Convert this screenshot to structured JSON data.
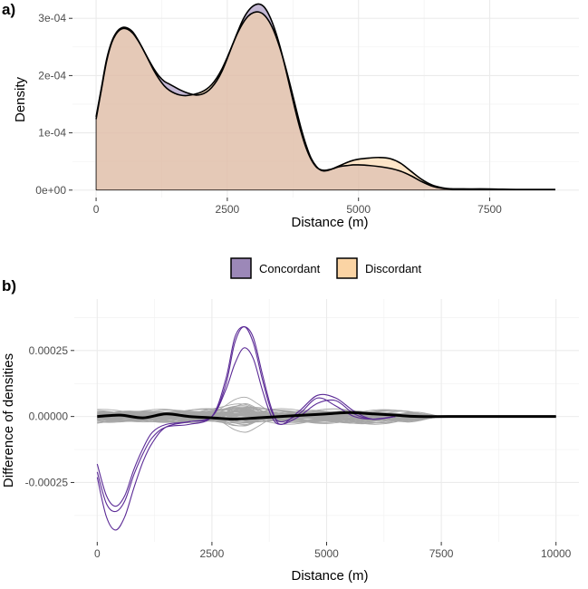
{
  "chart_data": [
    {
      "panel": "a)",
      "type": "area",
      "xlabel": "Distance (m)",
      "ylabel": "Density",
      "xlim": [
        -450,
        9200
      ],
      "ylim": [
        -1.3e-05,
        0.000332
      ],
      "x_ticks": [
        0,
        2500,
        5000,
        7500
      ],
      "x_tick_labels": [
        "0",
        "2500",
        "5000",
        "7500"
      ],
      "y_ticks": [
        0,
        0.0001,
        0.0002,
        0.0003
      ],
      "y_tick_labels": [
        "0e+00",
        "1e-04",
        "2e-04",
        "3e-04"
      ],
      "grid": true,
      "legend_position": "bottom",
      "series": [
        {
          "name": "Concordant",
          "color": "#9c88b8",
          "points": [
            [
              0,
              0.000124
            ],
            [
              100,
              0.000175
            ],
            [
              200,
              0.000225
            ],
            [
              300,
              0.000258
            ],
            [
              400,
              0.000275
            ],
            [
              500,
              0.000282
            ],
            [
              600,
              0.000281
            ],
            [
              700,
              0.000274
            ],
            [
              800,
              0.000261
            ],
            [
              900,
              0.000245
            ],
            [
              1000,
              0.000228
            ],
            [
              1100,
              0.000212
            ],
            [
              1200,
              0.000199
            ],
            [
              1300,
              0.00019
            ],
            [
              1400,
              0.000185
            ],
            [
              1500,
              0.00018
            ],
            [
              1600,
              0.000175
            ],
            [
              1700,
              0.000171
            ],
            [
              1800,
              0.000168
            ],
            [
              1900,
              0.000166
            ],
            [
              2000,
              0.000167
            ],
            [
              2100,
              0.000171
            ],
            [
              2200,
              0.000179
            ],
            [
              2300,
              0.000191
            ],
            [
              2400,
              0.000208
            ],
            [
              2500,
              0.00023
            ],
            [
              2600,
              0.000254
            ],
            [
              2700,
              0.000277
            ],
            [
              2800,
              0.000298
            ],
            [
              2900,
              0.000313
            ],
            [
              3000,
              0.000322
            ],
            [
              3100,
              0.000325
            ],
            [
              3200,
              0.00032
            ],
            [
              3300,
              0.000305
            ],
            [
              3400,
              0.000282
            ],
            [
              3500,
              0.000252
            ],
            [
              3600,
              0.000216
            ],
            [
              3700,
              0.000177
            ],
            [
              3800,
              0.000138
            ],
            [
              3900,
              0.000103
            ],
            [
              4000,
              7.4e-05
            ],
            [
              4100,
              5.3e-05
            ],
            [
              4200,
              4e-05
            ],
            [
              4300,
              3.5e-05
            ],
            [
              4400,
              3.5e-05
            ],
            [
              4500,
              3.7e-05
            ],
            [
              4600,
              4e-05
            ],
            [
              4700,
              4.2e-05
            ],
            [
              4800,
              4.3e-05
            ],
            [
              4900,
              4.4e-05
            ],
            [
              5000,
              4.4e-05
            ],
            [
              5200,
              4.3e-05
            ],
            [
              5400,
              4.1e-05
            ],
            [
              5600,
              3.8e-05
            ],
            [
              5800,
              3.3e-05
            ],
            [
              6000,
              2.5e-05
            ],
            [
              6200,
              1.5e-05
            ],
            [
              6400,
              7e-06
            ],
            [
              6600,
              3e-06
            ],
            [
              6800,
              2e-06
            ],
            [
              7000,
              2e-06
            ],
            [
              7500,
              2e-06
            ],
            [
              8000,
              1e-06
            ],
            [
              8500,
              1e-06
            ],
            [
              8750,
              1e-06
            ]
          ]
        },
        {
          "name": "Discordant",
          "color": "#fbd4a4",
          "points": [
            [
              0,
              0.000128
            ],
            [
              100,
              0.000178
            ],
            [
              200,
              0.000228
            ],
            [
              300,
              0.00026
            ],
            [
              400,
              0.000277
            ],
            [
              500,
              0.000284
            ],
            [
              600,
              0.000283
            ],
            [
              700,
              0.000276
            ],
            [
              800,
              0.000262
            ],
            [
              900,
              0.000245
            ],
            [
              1000,
              0.000227
            ],
            [
              1100,
              0.000209
            ],
            [
              1200,
              0.000194
            ],
            [
              1300,
              0.000182
            ],
            [
              1400,
              0.000174
            ],
            [
              1500,
              0.000169
            ],
            [
              1600,
              0.000166
            ],
            [
              1700,
              0.000165
            ],
            [
              1800,
              0.000166
            ],
            [
              1900,
              0.000168
            ],
            [
              2000,
              0.000171
            ],
            [
              2100,
              0.000176
            ],
            [
              2200,
              0.000184
            ],
            [
              2300,
              0.000196
            ],
            [
              2400,
              0.000212
            ],
            [
              2500,
              0.000232
            ],
            [
              2600,
              0.000254
            ],
            [
              2700,
              0.000275
            ],
            [
              2800,
              0.000292
            ],
            [
              2900,
              0.000304
            ],
            [
              3000,
              0.00031
            ],
            [
              3100,
              0.000311
            ],
            [
              3200,
              0.000306
            ],
            [
              3300,
              0.000294
            ],
            [
              3400,
              0.000275
            ],
            [
              3500,
              0.000249
            ],
            [
              3600,
              0.000218
            ],
            [
              3700,
              0.000183
            ],
            [
              3800,
              0.000146
            ],
            [
              3900,
              0.00011
            ],
            [
              4000,
              7.9e-05
            ],
            [
              4100,
              5.5e-05
            ],
            [
              4200,
              4.1e-05
            ],
            [
              4300,
              3.4e-05
            ],
            [
              4400,
              3.4e-05
            ],
            [
              4500,
              3.7e-05
            ],
            [
              4600,
              4.1e-05
            ],
            [
              4700,
              4.5e-05
            ],
            [
              4800,
              4.9e-05
            ],
            [
              4900,
              5.2e-05
            ],
            [
              5000,
              5.4e-05
            ],
            [
              5200,
              5.6e-05
            ],
            [
              5400,
              5.7e-05
            ],
            [
              5600,
              5.5e-05
            ],
            [
              5800,
              4.7e-05
            ],
            [
              6000,
              3.3e-05
            ],
            [
              6200,
              1.9e-05
            ],
            [
              6400,
              9e-06
            ],
            [
              6600,
              4e-06
            ],
            [
              6800,
              2e-06
            ],
            [
              7000,
              2e-06
            ],
            [
              7500,
              1e-06
            ],
            [
              8000,
              1e-06
            ],
            [
              8500,
              1e-06
            ],
            [
              8750,
              1e-06
            ]
          ]
        }
      ]
    },
    {
      "panel": "b)",
      "type": "line",
      "xlabel": "Distance (m)",
      "ylabel": "Difference of densities",
      "xlim": [
        -500,
        10500
      ],
      "ylim": [
        -0.000475,
        0.000445
      ],
      "x_ticks": [
        0,
        2500,
        5000,
        7500,
        10000
      ],
      "x_tick_labels": [
        "0",
        "2500",
        "5000",
        "7500",
        "10000"
      ],
      "y_ticks": [
        -0.00025,
        0,
        0.00025
      ],
      "y_tick_labels": [
        "-0.00025",
        "0.00000",
        "0.00025"
      ],
      "grid": true,
      "null_band": {
        "name": "Permuted differences",
        "color": "#a6a6a6",
        "line_count": 60,
        "typical_range": [
          -4e-05,
          4e-05
        ],
        "upper_peak": [
          3200,
          0.00014
        ]
      },
      "series": [
        {
          "name": "Observed difference",
          "color": "#000000",
          "points": [
            [
              0,
              0.0
            ],
            [
              500,
              5e-06
            ],
            [
              1000,
              -5e-06
            ],
            [
              1500,
              1e-05
            ],
            [
              2000,
              0.0
            ],
            [
              2500,
              -5e-06
            ],
            [
              3000,
              -1e-05
            ],
            [
              3500,
              -5e-06
            ],
            [
              4000,
              0.0
            ],
            [
              4500,
              5e-06
            ],
            [
              5000,
              1e-05
            ],
            [
              5500,
              1.5e-05
            ],
            [
              6000,
              1e-05
            ],
            [
              6500,
              5e-06
            ],
            [
              7000,
              0.0
            ],
            [
              8000,
              0.0
            ],
            [
              9000,
              0.0
            ],
            [
              10000,
              0.0
            ]
          ]
        },
        {
          "name": "Concordant vs discordant 1",
          "color": "#5b2a96",
          "points": [
            [
              0,
              -0.00018
            ],
            [
              200,
              -0.0003
            ],
            [
              400,
              -0.00034
            ],
            [
              600,
              -0.0003
            ],
            [
              800,
              -0.0002
            ],
            [
              1000,
              -0.00012
            ],
            [
              1200,
              -6e-05
            ],
            [
              1500,
              -3e-05
            ],
            [
              2000,
              -2e-05
            ],
            [
              2500,
              0.0
            ],
            [
              2800,
              0.00012
            ],
            [
              3000,
              0.00028
            ],
            [
              3200,
              0.00034
            ],
            [
              3400,
              0.00028
            ],
            [
              3600,
              0.00014
            ],
            [
              3800,
              2e-05
            ],
            [
              4000,
              -2e-05
            ],
            [
              4400,
              1e-05
            ],
            [
              4800,
              7e-05
            ],
            [
              5200,
              4e-05
            ],
            [
              5600,
              0.0
            ],
            [
              6000,
              -1e-05
            ],
            [
              6500,
              0.0
            ]
          ]
        },
        {
          "name": "Concordant vs discordant 2",
          "color": "#5b2a96",
          "points": [
            [
              0,
              -0.00021
            ],
            [
              200,
              -0.00033
            ],
            [
              400,
              -0.00036
            ],
            [
              600,
              -0.00032
            ],
            [
              800,
              -0.00022
            ],
            [
              1000,
              -0.00014
            ],
            [
              1200,
              -8e-05
            ],
            [
              1500,
              -4e-05
            ],
            [
              2000,
              -3e-05
            ],
            [
              2500,
              0.0
            ],
            [
              2800,
              0.00014
            ],
            [
              3000,
              0.0003
            ],
            [
              3200,
              0.00034
            ],
            [
              3400,
              0.0003
            ],
            [
              3600,
              0.00016
            ],
            [
              3800,
              3e-05
            ],
            [
              4000,
              -3e-05
            ],
            [
              4400,
              2e-05
            ],
            [
              4800,
              8e-05
            ],
            [
              5200,
              7e-05
            ],
            [
              5600,
              2e-05
            ],
            [
              6000,
              -1e-05
            ],
            [
              6500,
              0.0
            ]
          ]
        },
        {
          "name": "Concordant vs discordant 3",
          "color": "#5b2a96",
          "points": [
            [
              0,
              -0.00023
            ],
            [
              200,
              -0.00038
            ],
            [
              400,
              -0.00043
            ],
            [
              600,
              -0.00038
            ],
            [
              800,
              -0.00027
            ],
            [
              1000,
              -0.00017
            ],
            [
              1200,
              -0.0001
            ],
            [
              1500,
              -4e-05
            ],
            [
              2000,
              -2e-05
            ],
            [
              2500,
              0.0
            ],
            [
              2800,
              0.0001
            ],
            [
              3000,
              0.0002
            ],
            [
              3200,
              0.00026
            ],
            [
              3400,
              0.00022
            ],
            [
              3600,
              0.0001
            ],
            [
              3800,
              0.0
            ],
            [
              4000,
              -3e-05
            ],
            [
              4400,
              0.0
            ],
            [
              4800,
              5e-05
            ],
            [
              5200,
              6e-05
            ],
            [
              5600,
              1e-05
            ],
            [
              6000,
              -1e-05
            ],
            [
              6500,
              0.0
            ]
          ]
        }
      ]
    }
  ],
  "legend": {
    "items": [
      {
        "label": "Concordant",
        "color": "#9c88b8"
      },
      {
        "label": "Discordant",
        "color": "#fbd4a4"
      }
    ]
  }
}
